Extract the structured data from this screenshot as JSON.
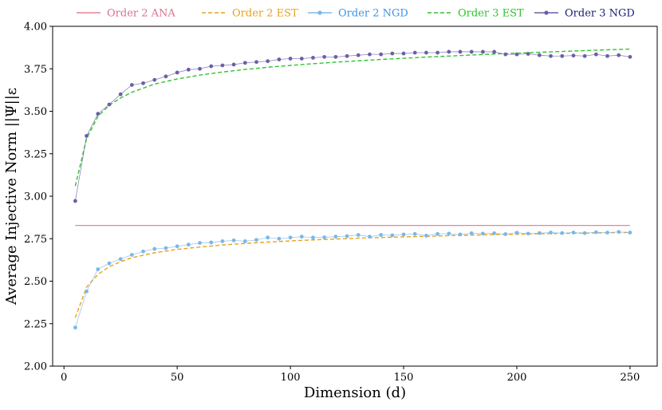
{
  "chart_data": {
    "type": "line",
    "xlabel": "Dimension (d)",
    "ylabel": "Average Injective Norm ||Ψ||ε",
    "xlim": [
      -5,
      262
    ],
    "ylim": [
      2.0,
      4.0
    ],
    "xticks": [
      0,
      50,
      100,
      150,
      200,
      250
    ],
    "yticks": [
      2.0,
      2.25,
      2.5,
      2.75,
      3.0,
      3.25,
      3.5,
      3.75,
      4.0
    ],
    "xtick_labels": [
      "0",
      "50",
      "100",
      "150",
      "200",
      "250"
    ],
    "ytick_labels": [
      "2.00",
      "2.25",
      "2.50",
      "2.75",
      "3.00",
      "3.25",
      "3.50",
      "3.75",
      "4.00"
    ],
    "grid": false,
    "legend_position": "top, outside plot, single row",
    "series": [
      {
        "name": "Order 2 ANA",
        "color": "#e8829a",
        "style": "solid",
        "marker": "none",
        "x": [
          5,
          250
        ],
        "y": [
          2.828,
          2.828
        ]
      },
      {
        "name": "Order 2 EST",
        "color": "#e8a21e",
        "style": "dashed",
        "marker": "none",
        "x": [
          5,
          10,
          15,
          20,
          25,
          30,
          40,
          50,
          60,
          70,
          80,
          90,
          100,
          110,
          120,
          130,
          140,
          150,
          160,
          170,
          180,
          190,
          200,
          210,
          220,
          230,
          240,
          250
        ],
        "y": [
          2.285,
          2.465,
          2.54,
          2.585,
          2.615,
          2.638,
          2.667,
          2.687,
          2.701,
          2.713,
          2.722,
          2.73,
          2.737,
          2.743,
          2.748,
          2.753,
          2.757,
          2.761,
          2.764,
          2.768,
          2.771,
          2.774,
          2.776,
          2.779,
          2.781,
          2.783,
          2.785,
          2.787
        ]
      },
      {
        "name": "Order 2 NGD",
        "color": "#7ab8e8",
        "style": "solid",
        "marker": "circle",
        "x": [
          5,
          10,
          15,
          20,
          25,
          30,
          35,
          40,
          45,
          50,
          55,
          60,
          65,
          70,
          75,
          80,
          85,
          90,
          95,
          100,
          105,
          110,
          115,
          120,
          125,
          130,
          135,
          140,
          145,
          150,
          155,
          160,
          165,
          170,
          175,
          180,
          185,
          190,
          195,
          200,
          205,
          210,
          215,
          220,
          225,
          230,
          235,
          240,
          245,
          250
        ],
        "y": [
          2.227,
          2.44,
          2.57,
          2.605,
          2.63,
          2.655,
          2.675,
          2.69,
          2.695,
          2.705,
          2.715,
          2.725,
          2.728,
          2.735,
          2.74,
          2.735,
          2.743,
          2.757,
          2.75,
          2.757,
          2.762,
          2.757,
          2.758,
          2.762,
          2.765,
          2.772,
          2.762,
          2.772,
          2.77,
          2.775,
          2.778,
          2.768,
          2.778,
          2.78,
          2.775,
          2.782,
          2.78,
          2.782,
          2.777,
          2.785,
          2.78,
          2.783,
          2.786,
          2.783,
          2.786,
          2.783,
          2.788,
          2.786,
          2.79,
          2.786
        ]
      },
      {
        "name": "Order 3 EST",
        "color": "#2ec42e",
        "style": "dashed",
        "marker": "none",
        "x": [
          5,
          10,
          15,
          20,
          25,
          30,
          40,
          50,
          60,
          70,
          80,
          90,
          100,
          110,
          120,
          130,
          140,
          150,
          160,
          170,
          180,
          190,
          200,
          210,
          220,
          230,
          240,
          250
        ],
        "y": [
          3.06,
          3.34,
          3.47,
          3.535,
          3.578,
          3.612,
          3.66,
          3.69,
          3.713,
          3.731,
          3.746,
          3.759,
          3.77,
          3.78,
          3.789,
          3.797,
          3.805,
          3.812,
          3.819,
          3.825,
          3.831,
          3.837,
          3.842,
          3.847,
          3.852,
          3.857,
          3.862,
          3.866
        ]
      },
      {
        "name": "Order 3 NGD",
        "color": "#6b5fa8",
        "style": "solid",
        "marker": "circle",
        "x": [
          5,
          10,
          15,
          20,
          25,
          30,
          35,
          40,
          45,
          50,
          55,
          60,
          65,
          70,
          75,
          80,
          85,
          90,
          95,
          100,
          105,
          110,
          115,
          120,
          125,
          130,
          135,
          140,
          145,
          150,
          155,
          160,
          165,
          170,
          175,
          180,
          185,
          190,
          195,
          200,
          205,
          210,
          215,
          220,
          225,
          230,
          235,
          240,
          245,
          250
        ],
        "y": [
          2.972,
          3.355,
          3.485,
          3.54,
          3.6,
          3.655,
          3.665,
          3.685,
          3.705,
          3.728,
          3.745,
          3.75,
          3.765,
          3.77,
          3.775,
          3.785,
          3.79,
          3.795,
          3.805,
          3.81,
          3.81,
          3.815,
          3.82,
          3.82,
          3.825,
          3.83,
          3.835,
          3.835,
          3.84,
          3.84,
          3.845,
          3.845,
          3.845,
          3.85,
          3.85,
          3.85,
          3.85,
          3.85,
          3.835,
          3.835,
          3.838,
          3.83,
          3.825,
          3.825,
          3.828,
          3.825,
          3.835,
          3.825,
          3.83,
          3.82
        ]
      }
    ]
  },
  "legend": {
    "items": [
      "Order 2 ANA",
      "Order 2 EST",
      "Order 2 NGD",
      "Order 3 EST",
      "Order 3 NGD"
    ],
    "text_colors": [
      "#d9708c",
      "#e8a21e",
      "#3a93e8",
      "#2ec42e",
      "#1c1c70"
    ]
  }
}
